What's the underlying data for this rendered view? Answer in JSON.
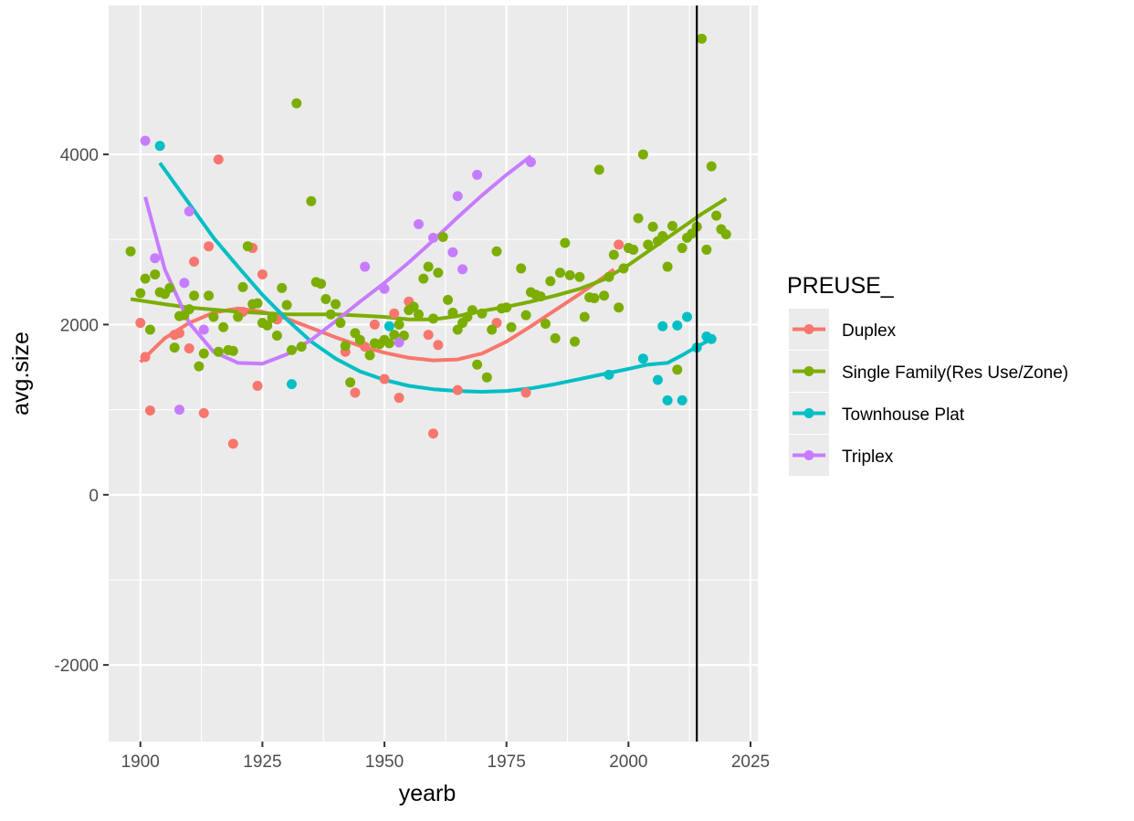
{
  "chart_data": {
    "type": "scatter",
    "xlabel": "yearb",
    "ylabel": "avg.size",
    "xlim": [
      1893.5,
      2026.5
    ],
    "ylim": [
      -2900,
      5750
    ],
    "x_ticks": [
      1900,
      1925,
      1950,
      1975,
      2000,
      2025
    ],
    "y_ticks": [
      -2000,
      0,
      2000,
      4000
    ],
    "grid": true,
    "vline": {
      "x": 2014
    },
    "legend": {
      "title": "PREUSE_",
      "position": "right"
    },
    "series": [
      {
        "name": "Duplex",
        "color": "#F8766D",
        "points": [
          [
            1900,
            2020
          ],
          [
            1901,
            1620
          ],
          [
            1902,
            990
          ],
          [
            1907,
            1880
          ],
          [
            1908,
            1900
          ],
          [
            1910,
            1720
          ],
          [
            1911,
            2740
          ],
          [
            1913,
            960
          ],
          [
            1914,
            2920
          ],
          [
            1916,
            3940
          ],
          [
            1919,
            600
          ],
          [
            1921,
            2150
          ],
          [
            1923,
            2900
          ],
          [
            1924,
            1280
          ],
          [
            1925,
            2590
          ],
          [
            1928,
            2060
          ],
          [
            1942,
            1680
          ],
          [
            1944,
            1200
          ],
          [
            1946,
            1740
          ],
          [
            1948,
            2000
          ],
          [
            1950,
            1360
          ],
          [
            1952,
            2130
          ],
          [
            1953,
            1140
          ],
          [
            1955,
            2270
          ],
          [
            1959,
            1880
          ],
          [
            1960,
            720
          ],
          [
            1961,
            1760
          ],
          [
            1965,
            1230
          ],
          [
            1973,
            2020
          ],
          [
            1979,
            1200
          ],
          [
            1998,
            2940
          ]
        ],
        "trend": [
          [
            1900,
            1560
          ],
          [
            1905,
            1840
          ],
          [
            1910,
            2020
          ],
          [
            1915,
            2140
          ],
          [
            1920,
            2190
          ],
          [
            1925,
            2150
          ],
          [
            1930,
            2070
          ],
          [
            1935,
            1960
          ],
          [
            1940,
            1850
          ],
          [
            1945,
            1750
          ],
          [
            1950,
            1670
          ],
          [
            1955,
            1610
          ],
          [
            1960,
            1580
          ],
          [
            1965,
            1590
          ],
          [
            1970,
            1660
          ],
          [
            1975,
            1800
          ],
          [
            1980,
            1980
          ],
          [
            1985,
            2170
          ],
          [
            1990,
            2360
          ],
          [
            1995,
            2560
          ],
          [
            1997,
            2650
          ]
        ]
      },
      {
        "name": "Single Family(Res Use/Zone)",
        "color": "#7CAE00",
        "points": [
          [
            1898,
            2860
          ],
          [
            1900,
            2370
          ],
          [
            1901,
            2540
          ],
          [
            1902,
            1940
          ],
          [
            1903,
            2590
          ],
          [
            1904,
            2380
          ],
          [
            1905,
            2360
          ],
          [
            1906,
            2430
          ],
          [
            1907,
            1730
          ],
          [
            1908,
            2100
          ],
          [
            1909,
            2110
          ],
          [
            1910,
            2180
          ],
          [
            1911,
            2340
          ],
          [
            1912,
            1510
          ],
          [
            1913,
            1660
          ],
          [
            1914,
            2340
          ],
          [
            1915,
            2090
          ],
          [
            1916,
            1680
          ],
          [
            1917,
            1970
          ],
          [
            1918,
            1700
          ],
          [
            1919,
            1690
          ],
          [
            1920,
            2090
          ],
          [
            1921,
            2440
          ],
          [
            1922,
            2920
          ],
          [
            1923,
            2240
          ],
          [
            1924,
            2250
          ],
          [
            1925,
            2020
          ],
          [
            1926,
            1990
          ],
          [
            1927,
            2080
          ],
          [
            1928,
            1870
          ],
          [
            1929,
            2430
          ],
          [
            1930,
            2230
          ],
          [
            1931,
            1700
          ],
          [
            1932,
            4600
          ],
          [
            1933,
            1740
          ],
          [
            1935,
            3450
          ],
          [
            1936,
            2500
          ],
          [
            1937,
            2480
          ],
          [
            1938,
            2300
          ],
          [
            1939,
            2120
          ],
          [
            1940,
            2240
          ],
          [
            1941,
            2020
          ],
          [
            1942,
            1750
          ],
          [
            1943,
            1320
          ],
          [
            1944,
            1900
          ],
          [
            1945,
            1820
          ],
          [
            1947,
            1640
          ],
          [
            1948,
            1780
          ],
          [
            1949,
            1770
          ],
          [
            1950,
            1820
          ],
          [
            1951,
            1780
          ],
          [
            1952,
            1880
          ],
          [
            1953,
            2000
          ],
          [
            1954,
            1870
          ],
          [
            1955,
            2170
          ],
          [
            1956,
            2210
          ],
          [
            1957,
            2120
          ],
          [
            1958,
            2540
          ],
          [
            1959,
            2680
          ],
          [
            1960,
            2070
          ],
          [
            1961,
            2610
          ],
          [
            1962,
            3030
          ],
          [
            1963,
            2290
          ],
          [
            1964,
            2140
          ],
          [
            1965,
            1940
          ],
          [
            1966,
            2020
          ],
          [
            1967,
            2090
          ],
          [
            1968,
            2170
          ],
          [
            1969,
            1530
          ],
          [
            1970,
            2130
          ],
          [
            1971,
            1380
          ],
          [
            1972,
            1940
          ],
          [
            1973,
            2860
          ],
          [
            1974,
            2190
          ],
          [
            1975,
            2200
          ],
          [
            1976,
            1970
          ],
          [
            1978,
            2660
          ],
          [
            1979,
            2110
          ],
          [
            1980,
            2380
          ],
          [
            1981,
            2350
          ],
          [
            1982,
            2330
          ],
          [
            1983,
            2010
          ],
          [
            1984,
            2510
          ],
          [
            1985,
            1840
          ],
          [
            1986,
            2610
          ],
          [
            1987,
            2960
          ],
          [
            1988,
            2580
          ],
          [
            1989,
            1800
          ],
          [
            1990,
            2560
          ],
          [
            1991,
            2090
          ],
          [
            1992,
            2320
          ],
          [
            1993,
            2310
          ],
          [
            1994,
            3820
          ],
          [
            1995,
            2340
          ],
          [
            1996,
            2560
          ],
          [
            1997,
            2820
          ],
          [
            1998,
            2200
          ],
          [
            1999,
            2660
          ],
          [
            2000,
            2900
          ],
          [
            2001,
            2880
          ],
          [
            2002,
            3250
          ],
          [
            2003,
            4000
          ],
          [
            2004,
            2940
          ],
          [
            2005,
            3150
          ],
          [
            2006,
            2980
          ],
          [
            2007,
            3040
          ],
          [
            2008,
            2680
          ],
          [
            2009,
            3160
          ],
          [
            2010,
            1470
          ],
          [
            2011,
            2900
          ],
          [
            2012,
            3020
          ],
          [
            2013,
            3070
          ],
          [
            2014,
            3150
          ],
          [
            2015,
            5360
          ],
          [
            2016,
            2880
          ],
          [
            2017,
            3860
          ],
          [
            2018,
            3280
          ],
          [
            2019,
            3120
          ],
          [
            2020,
            3060
          ]
        ],
        "trend": [
          [
            1898,
            2300
          ],
          [
            1905,
            2240
          ],
          [
            1910,
            2200
          ],
          [
            1920,
            2150
          ],
          [
            1930,
            2120
          ],
          [
            1940,
            2120
          ],
          [
            1950,
            2090
          ],
          [
            1955,
            2060
          ],
          [
            1960,
            2060
          ],
          [
            1965,
            2100
          ],
          [
            1970,
            2160
          ],
          [
            1975,
            2210
          ],
          [
            1980,
            2270
          ],
          [
            1985,
            2340
          ],
          [
            1990,
            2420
          ],
          [
            1995,
            2530
          ],
          [
            2000,
            2700
          ],
          [
            2005,
            2900
          ],
          [
            2010,
            3100
          ],
          [
            2015,
            3300
          ],
          [
            2020,
            3480
          ]
        ]
      },
      {
        "name": "Townhouse Plat",
        "color": "#00BFC4",
        "points": [
          [
            1904,
            4100
          ],
          [
            1931,
            1300
          ],
          [
            1951,
            1980
          ],
          [
            1996,
            1410
          ],
          [
            2003,
            1600
          ],
          [
            2006,
            1350
          ],
          [
            2007,
            1980
          ],
          [
            2008,
            1110
          ],
          [
            2010,
            1990
          ],
          [
            2011,
            1110
          ],
          [
            2012,
            2090
          ],
          [
            2014,
            1730
          ],
          [
            2016,
            1860
          ],
          [
            2017,
            1830
          ]
        ],
        "trend": [
          [
            1904,
            3900
          ],
          [
            1910,
            3420
          ],
          [
            1915,
            3020
          ],
          [
            1920,
            2680
          ],
          [
            1925,
            2350
          ],
          [
            1930,
            2060
          ],
          [
            1935,
            1800
          ],
          [
            1940,
            1600
          ],
          [
            1945,
            1450
          ],
          [
            1950,
            1350
          ],
          [
            1955,
            1280
          ],
          [
            1960,
            1240
          ],
          [
            1965,
            1220
          ],
          [
            1970,
            1210
          ],
          [
            1975,
            1220
          ],
          [
            1980,
            1250
          ],
          [
            1985,
            1300
          ],
          [
            1990,
            1360
          ],
          [
            1995,
            1420
          ],
          [
            2000,
            1480
          ],
          [
            2004,
            1530
          ],
          [
            2008,
            1550
          ],
          [
            2011,
            1640
          ],
          [
            2014,
            1740
          ],
          [
            2017,
            1830
          ]
        ]
      },
      {
        "name": "Triplex",
        "color": "#C77CFF",
        "points": [
          [
            1901,
            4160
          ],
          [
            1903,
            2780
          ],
          [
            1908,
            1000
          ],
          [
            1909,
            2490
          ],
          [
            1910,
            3330
          ],
          [
            1913,
            1940
          ],
          [
            1946,
            2680
          ],
          [
            1950,
            2420
          ],
          [
            1953,
            1790
          ],
          [
            1957,
            3180
          ],
          [
            1960,
            3020
          ],
          [
            1964,
            2850
          ],
          [
            1965,
            3510
          ],
          [
            1966,
            2650
          ],
          [
            1969,
            3760
          ],
          [
            1980,
            3910
          ]
        ],
        "trend": [
          [
            1901,
            3500
          ],
          [
            1905,
            2650
          ],
          [
            1910,
            2020
          ],
          [
            1915,
            1680
          ],
          [
            1920,
            1550
          ],
          [
            1925,
            1540
          ],
          [
            1930,
            1650
          ],
          [
            1935,
            1820
          ],
          [
            1940,
            2040
          ],
          [
            1945,
            2270
          ],
          [
            1950,
            2490
          ],
          [
            1955,
            2730
          ],
          [
            1960,
            2990
          ],
          [
            1965,
            3260
          ],
          [
            1970,
            3520
          ],
          [
            1975,
            3760
          ],
          [
            1980,
            3980
          ]
        ]
      }
    ]
  }
}
